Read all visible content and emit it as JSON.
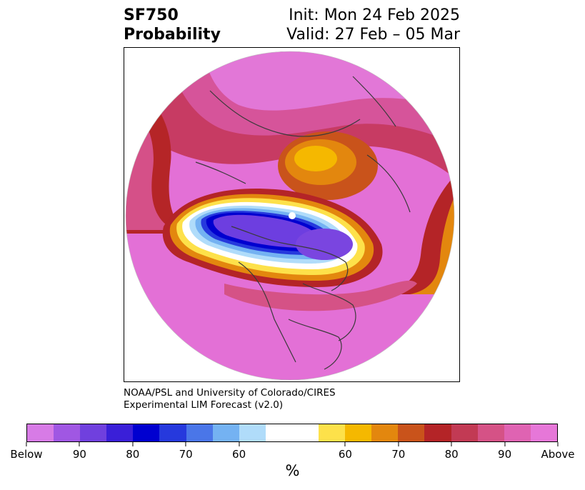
{
  "header": {
    "title_line1": "SF750",
    "title_line2": "Probability",
    "init": "Init: Mon 24 Feb 2025",
    "valid": "Valid: 27 Feb – 05 Mar"
  },
  "credit": {
    "line1": "NOAA/PSL and University of Colorado/CIRES",
    "line2": "Experimental LIM Forecast (v2.0)"
  },
  "colorbar": {
    "colors": [
      "#d77be6",
      "#a057e3",
      "#7040de",
      "#3a1fd8",
      "#0000d0",
      "#2639dd",
      "#4a76e8",
      "#74b2f2",
      "#b0dcfa",
      "#ffffff",
      "#ffffff",
      "#fde14a",
      "#f5b800",
      "#e3870e",
      "#c9531b",
      "#b42427",
      "#c23a54",
      "#d55286",
      "#df63b2",
      "#e677d8"
    ],
    "ticks": [
      "Below",
      "90",
      "80",
      "70",
      "60",
      "60",
      "70",
      "80",
      "90",
      "Above"
    ],
    "label": "%"
  }
}
